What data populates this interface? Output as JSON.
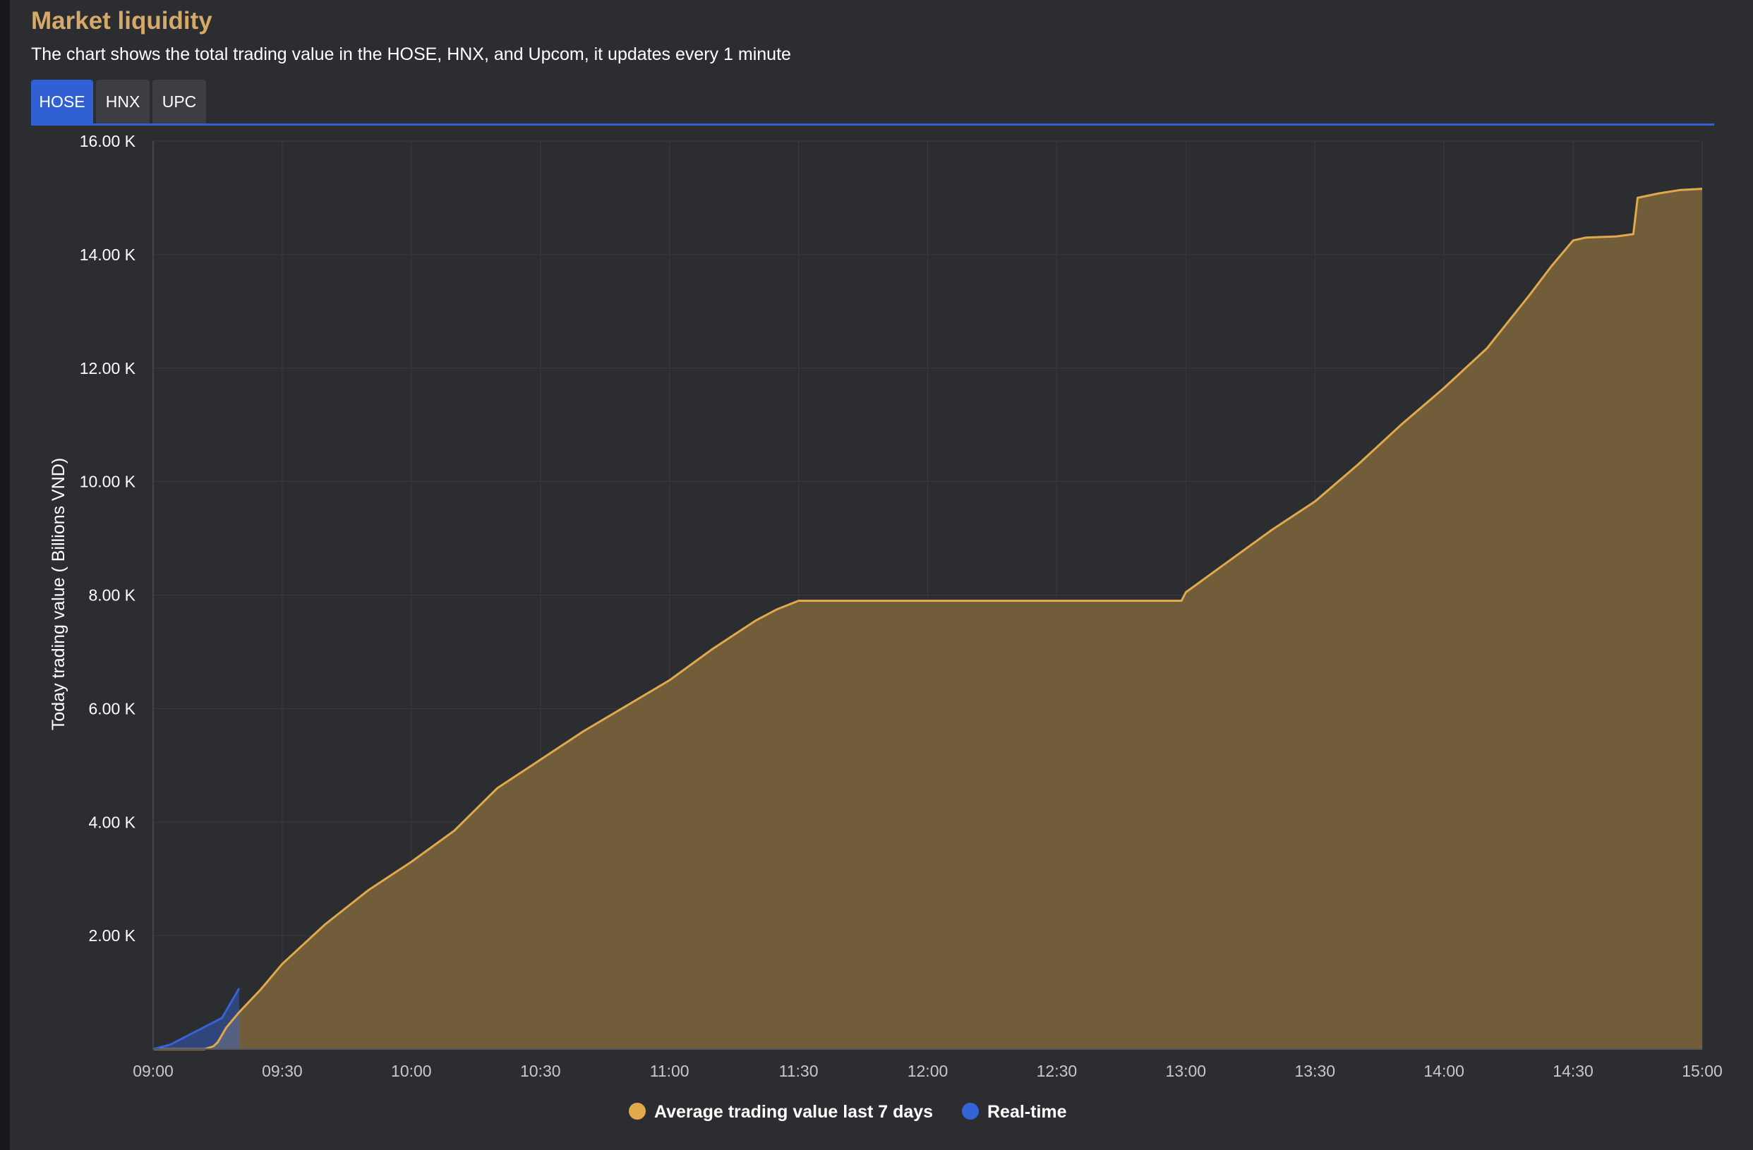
{
  "header": {
    "title": "Market liquidity",
    "subtitle": "The chart shows the total trading value in the HOSE, HNX, and Upcom, it updates every 1 minute"
  },
  "tabs": [
    {
      "label": "HOSE",
      "active": true
    },
    {
      "label": "HNX",
      "active": false
    },
    {
      "label": "UPC",
      "active": false
    }
  ],
  "colors": {
    "accent": "#3060d4",
    "average_line": "#e0a94c",
    "average_fill": "#725d3a",
    "realtime": "#3563d8",
    "title": "#d4a96a"
  },
  "chart_data": {
    "type": "area",
    "title": "",
    "xlabel": "",
    "ylabel": "Today trading value ( Billions VND)",
    "xlim": [
      "09:00",
      "15:00"
    ],
    "ylim": [
      0,
      16000
    ],
    "grid": true,
    "legend_position": "bottom",
    "x_ticks": [
      "09:00",
      "09:30",
      "10:00",
      "10:30",
      "11:00",
      "11:30",
      "12:00",
      "12:30",
      "13:00",
      "13:30",
      "14:00",
      "14:30",
      "15:00"
    ],
    "y_ticks": [
      "2.00 K",
      "4.00 K",
      "6.00 K",
      "8.00 K",
      "10.00 K",
      "12.00 K",
      "14.00 K",
      "16.00 K"
    ],
    "series": [
      {
        "name": "Average trading value last 7 days",
        "x": [
          "09:00",
          "09:12",
          "09:14",
          "09:15",
          "09:17",
          "09:20",
          "09:25",
          "09:30",
          "09:40",
          "09:50",
          "10:00",
          "10:10",
          "10:20",
          "10:30",
          "10:40",
          "10:50",
          "11:00",
          "11:10",
          "11:20",
          "11:25",
          "11:30",
          "12:00",
          "12:30",
          "12:59",
          "13:00",
          "13:10",
          "13:20",
          "13:30",
          "13:40",
          "13:50",
          "14:00",
          "14:10",
          "14:20",
          "14:25",
          "14:30",
          "14:33",
          "14:40",
          "14:44",
          "14:45",
          "14:50",
          "14:55",
          "15:00"
        ],
        "values": [
          0,
          0,
          50,
          120,
          380,
          650,
          1050,
          1500,
          2200,
          2800,
          3300,
          3850,
          4600,
          5100,
          5600,
          6050,
          6500,
          7050,
          7550,
          7750,
          7900,
          7900,
          7900,
          7900,
          8050,
          8600,
          9150,
          9650,
          10300,
          11000,
          11650,
          12350,
          13300,
          13800,
          14250,
          14300,
          14320,
          14360,
          15000,
          15080,
          15140,
          15160
        ]
      },
      {
        "name": "Real-time",
        "x": [
          "09:00",
          "09:04",
          "09:16",
          "09:20"
        ],
        "values": [
          0,
          80,
          550,
          1070
        ]
      }
    ]
  }
}
